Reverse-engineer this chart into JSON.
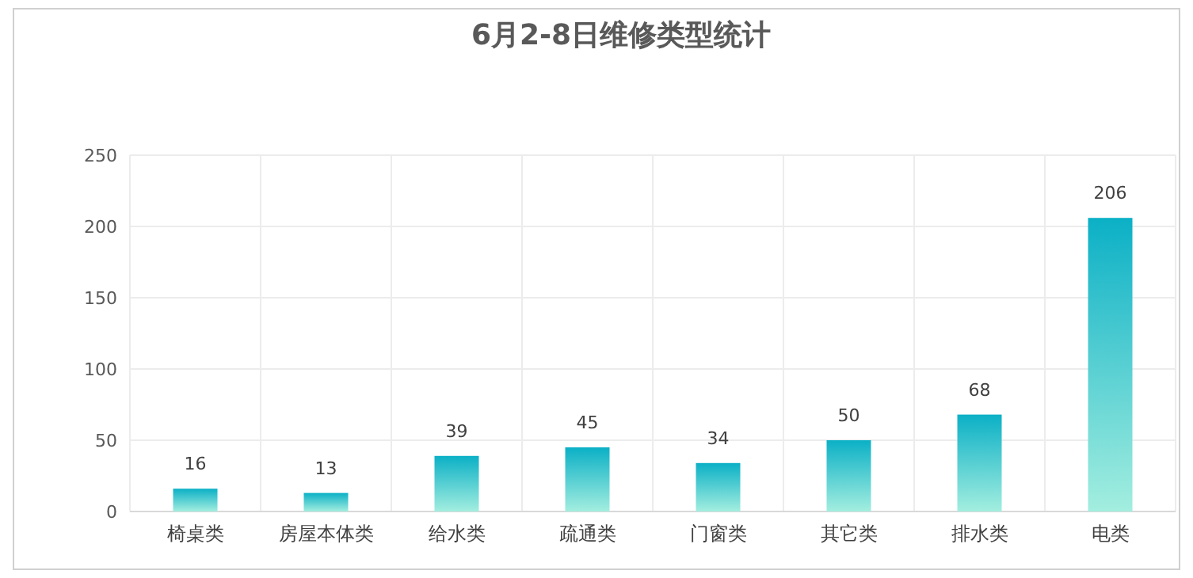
{
  "chart_data": {
    "type": "bar",
    "title": "6月2-8日维修类型统计",
    "categories": [
      "椅桌类",
      "房屋本体类",
      "给水类",
      "疏通类",
      "门窗类",
      "其它类",
      "排水类",
      "电类"
    ],
    "values": [
      16,
      13,
      39,
      45,
      34,
      50,
      68,
      206
    ],
    "color": "#0bb0c6",
    "ylim": [
      0,
      250
    ],
    "yticks": [
      0,
      50,
      100,
      150,
      200,
      250
    ],
    "grid": true,
    "data_labels": true
  }
}
